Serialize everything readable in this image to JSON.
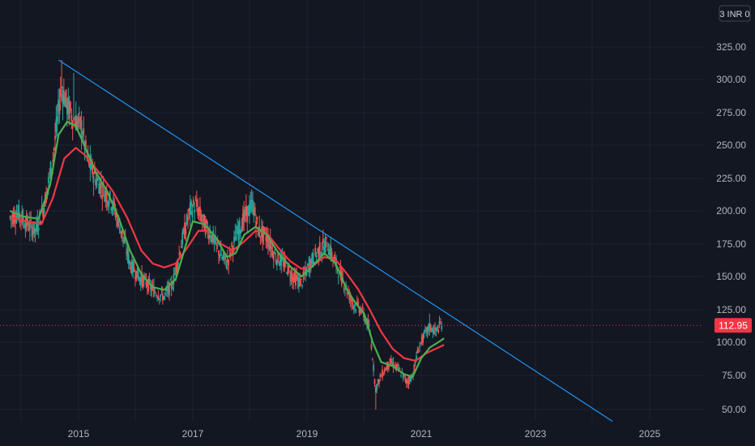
{
  "chart_data": {
    "type": "candlestick",
    "currency_label": "3 INR 0",
    "x_ticks": [
      "2015",
      "2017",
      "2019",
      "2021",
      "2023",
      "2025"
    ],
    "x_tick_years": [
      2015,
      2017,
      2019,
      2021,
      2023,
      2025
    ],
    "xlim": [
      2013.8,
      2026.8
    ],
    "y_ticks": [
      "50.00",
      "75.00",
      "100.00",
      "125.00",
      "150.00",
      "175.00",
      "200.00",
      "225.00",
      "250.00",
      "275.00",
      "300.00",
      "325.00"
    ],
    "ylim": [
      40,
      345
    ],
    "grid": true,
    "last_price": 112.95,
    "last_price_label": "112.95",
    "colors": {
      "background": "#131722",
      "grid": "#1f2330",
      "candle_up": "#26a69a",
      "candle_down": "#ef5350",
      "ma_fast": "#4caf50",
      "ma_slow": "#f23645",
      "trendline": "#2196f3",
      "price_line": "#f23645"
    },
    "trendline": {
      "x": [
        2014.65,
        2024.35
      ],
      "y": [
        315,
        41
      ]
    },
    "price_path": [
      [
        2013.8,
        195
      ],
      [
        2013.95,
        198
      ],
      [
        2014.1,
        190
      ],
      [
        2014.25,
        185
      ],
      [
        2014.4,
        205
      ],
      [
        2014.55,
        240
      ],
      [
        2014.7,
        295
      ],
      [
        2014.8,
        280
      ],
      [
        2014.92,
        270
      ],
      [
        2015.05,
        265
      ],
      [
        2015.15,
        240
      ],
      [
        2015.3,
        225
      ],
      [
        2015.45,
        215
      ],
      [
        2015.6,
        205
      ],
      [
        2015.75,
        185
      ],
      [
        2015.9,
        160
      ],
      [
        2016.05,
        150
      ],
      [
        2016.2,
        145
      ],
      [
        2016.35,
        138
      ],
      [
        2016.5,
        135
      ],
      [
        2016.65,
        145
      ],
      [
        2016.8,
        175
      ],
      [
        2016.95,
        200
      ],
      [
        2017.05,
        205
      ],
      [
        2017.2,
        190
      ],
      [
        2017.35,
        180
      ],
      [
        2017.5,
        165
      ],
      [
        2017.6,
        160
      ],
      [
        2017.75,
        180
      ],
      [
        2017.9,
        195
      ],
      [
        2018.05,
        205
      ],
      [
        2018.15,
        185
      ],
      [
        2018.3,
        180
      ],
      [
        2018.45,
        165
      ],
      [
        2018.6,
        160
      ],
      [
        2018.75,
        150
      ],
      [
        2018.9,
        145
      ],
      [
        2019.05,
        160
      ],
      [
        2019.2,
        170
      ],
      [
        2019.35,
        175
      ],
      [
        2019.5,
        160
      ],
      [
        2019.65,
        145
      ],
      [
        2019.8,
        130
      ],
      [
        2019.95,
        125
      ],
      [
        2020.1,
        110
      ],
      [
        2020.2,
        65
      ],
      [
        2020.3,
        75
      ],
      [
        2020.45,
        85
      ],
      [
        2020.6,
        80
      ],
      [
        2020.75,
        70
      ],
      [
        2020.85,
        75
      ],
      [
        2020.95,
        95
      ],
      [
        2021.05,
        105
      ],
      [
        2021.15,
        112
      ],
      [
        2021.25,
        108
      ],
      [
        2021.35,
        114
      ]
    ],
    "ma_fast": [
      [
        2013.8,
        200
      ],
      [
        2014.0,
        196
      ],
      [
        2014.3,
        194
      ],
      [
        2014.5,
        220
      ],
      [
        2014.65,
        258
      ],
      [
        2014.8,
        268
      ],
      [
        2014.95,
        265
      ],
      [
        2015.1,
        250
      ],
      [
        2015.3,
        230
      ],
      [
        2015.5,
        215
      ],
      [
        2015.7,
        195
      ],
      [
        2015.9,
        170
      ],
      [
        2016.1,
        152
      ],
      [
        2016.3,
        142
      ],
      [
        2016.5,
        140
      ],
      [
        2016.7,
        148
      ],
      [
        2016.85,
        170
      ],
      [
        2017.0,
        192
      ],
      [
        2017.2,
        190
      ],
      [
        2017.4,
        180
      ],
      [
        2017.6,
        165
      ],
      [
        2017.75,
        168
      ],
      [
        2017.9,
        182
      ],
      [
        2018.1,
        188
      ],
      [
        2018.3,
        182
      ],
      [
        2018.5,
        168
      ],
      [
        2018.7,
        158
      ],
      [
        2018.9,
        150
      ],
      [
        2019.1,
        158
      ],
      [
        2019.3,
        168
      ],
      [
        2019.5,
        160
      ],
      [
        2019.7,
        140
      ],
      [
        2019.85,
        130
      ],
      [
        2020.0,
        122
      ],
      [
        2020.15,
        100
      ],
      [
        2020.3,
        85
      ],
      [
        2020.5,
        82
      ],
      [
        2020.7,
        76
      ],
      [
        2020.85,
        74
      ],
      [
        2021.0,
        88
      ],
      [
        2021.15,
        96
      ],
      [
        2021.3,
        100
      ],
      [
        2021.4,
        103
      ]
    ],
    "ma_slow": [
      [
        2013.8,
        195
      ],
      [
        2014.1,
        192
      ],
      [
        2014.35,
        190
      ],
      [
        2014.55,
        210
      ],
      [
        2014.75,
        240
      ],
      [
        2014.95,
        248
      ],
      [
        2015.1,
        243
      ],
      [
        2015.35,
        230
      ],
      [
        2015.6,
        215
      ],
      [
        2015.85,
        195
      ],
      [
        2016.1,
        170
      ],
      [
        2016.3,
        160
      ],
      [
        2016.5,
        157
      ],
      [
        2016.7,
        160
      ],
      [
        2016.9,
        172
      ],
      [
        2017.1,
        185
      ],
      [
        2017.3,
        185
      ],
      [
        2017.5,
        175
      ],
      [
        2017.7,
        170
      ],
      [
        2017.9,
        177
      ],
      [
        2018.1,
        185
      ],
      [
        2018.3,
        183
      ],
      [
        2018.5,
        172
      ],
      [
        2018.7,
        162
      ],
      [
        2018.9,
        156
      ],
      [
        2019.1,
        158
      ],
      [
        2019.3,
        165
      ],
      [
        2019.5,
        163
      ],
      [
        2019.7,
        152
      ],
      [
        2019.9,
        140
      ],
      [
        2020.1,
        125
      ],
      [
        2020.3,
        108
      ],
      [
        2020.5,
        95
      ],
      [
        2020.7,
        88
      ],
      [
        2020.9,
        86
      ],
      [
        2021.1,
        92
      ],
      [
        2021.25,
        95
      ],
      [
        2021.4,
        98
      ]
    ]
  }
}
